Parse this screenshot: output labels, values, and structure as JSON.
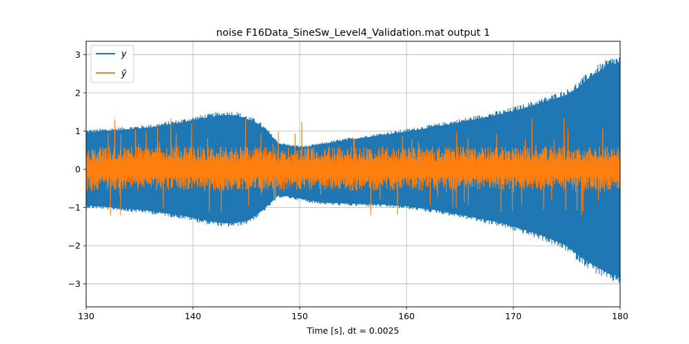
{
  "chart_data": {
    "type": "line",
    "title": "noise F16Data_SineSw_Level4_Validation.mat output 1",
    "xlabel": "Time [s], dt = 0.0025",
    "ylabel": "",
    "xlim": [
      130,
      180
    ],
    "ylim": [
      -3.6,
      3.35
    ],
    "xticks": [
      130,
      140,
      150,
      160,
      170,
      180
    ],
    "xtick_labels": [
      "130",
      "140",
      "150",
      "160",
      "170",
      "180"
    ],
    "yticks": [
      -3,
      -2,
      -1,
      0,
      1,
      2,
      3
    ],
    "ytick_labels": [
      "−3",
      "−2",
      "−1",
      "0",
      "1",
      "2",
      "3"
    ],
    "grid": true,
    "legend_position": "top-left",
    "series": [
      {
        "name": "y",
        "color": "#1f77b4",
        "style": "dense oscillation envelope",
        "envelope_t": [
          130,
          133,
          136,
          139,
          141,
          143,
          144,
          145,
          146,
          147,
          148,
          149,
          150,
          151,
          152,
          154,
          157,
          160,
          163,
          166,
          169,
          171,
          173,
          175,
          176,
          177,
          178,
          179,
          180
        ],
        "envelope_upper": [
          1.04,
          1.1,
          1.18,
          1.32,
          1.44,
          1.53,
          1.52,
          1.42,
          1.3,
          1.05,
          0.72,
          0.66,
          0.62,
          0.64,
          0.7,
          0.8,
          0.93,
          1.06,
          1.21,
          1.38,
          1.56,
          1.72,
          1.9,
          2.1,
          2.28,
          2.55,
          2.75,
          2.92,
          3.0
        ],
        "envelope_lower": [
          -1.02,
          -1.08,
          -1.17,
          -1.3,
          -1.43,
          -1.52,
          -1.51,
          -1.44,
          -1.28,
          -1.02,
          -0.74,
          -0.76,
          -0.82,
          -0.88,
          -0.92,
          -0.96,
          -0.98,
          -1.04,
          -1.16,
          -1.33,
          -1.52,
          -1.7,
          -1.9,
          -2.15,
          -2.4,
          -2.6,
          -2.78,
          -2.95,
          -3.0
        ]
      },
      {
        "name": "ŷ",
        "color": "#ff7f0e",
        "style": "noise around zero",
        "typical_amplitude": 0.6,
        "max_peak": 1.35,
        "min_peak": -1.2
      }
    ]
  }
}
